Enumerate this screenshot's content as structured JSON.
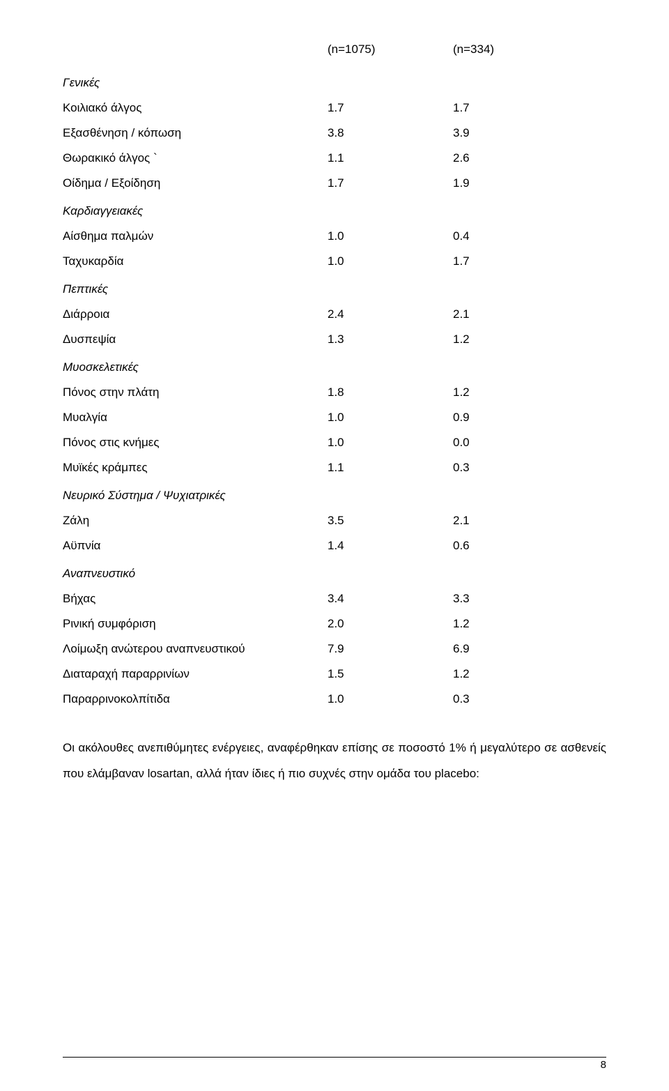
{
  "page": {
    "background_color": "#ffffff",
    "text_color": "#000000",
    "body_fontsize": 17,
    "line_height": 2.0,
    "font_family": "Arial",
    "page_number": "8"
  },
  "headers": {
    "col_a": "(n=1075)",
    "col_b": "(n=334)"
  },
  "sections": [
    {
      "title": "Γενικές",
      "rows": [
        {
          "label": "Κοιλιακό άλγος",
          "a": "1.7",
          "b": "1.7"
        },
        {
          "label": "Εξασθένηση / κόπωση",
          "a": "3.8",
          "b": "3.9"
        },
        {
          "label": "Θωρακικό άλγος   `",
          "a": "1.1",
          "b": "2.6"
        },
        {
          "label": "Οίδημα / Εξοίδηση",
          "a": "1.7",
          "b": "1.9"
        }
      ]
    },
    {
      "title": "Καρδιαγγειακές",
      "rows": [
        {
          "label": "Αίσθημα παλμών",
          "a": "1.0",
          "b": "0.4"
        },
        {
          "label": "Ταχυκαρδία",
          "a": "1.0",
          "b": "1.7"
        }
      ]
    },
    {
      "title": "Πεπτικές",
      "rows": [
        {
          "label": "Διάρροια",
          "a": "2.4",
          "b": "2.1"
        },
        {
          "label": "Δυσπεψία",
          "a": "1.3",
          "b": "1.2"
        }
      ]
    },
    {
      "title": "Μυοσκελετικές",
      "rows": [
        {
          "label": "Πόνος στην πλάτη",
          "a": "1.8",
          "b": "1.2"
        },
        {
          "label": "Μυαλγία",
          "a": "1.0",
          "b": "0.9"
        },
        {
          "label": "Πόνος στις κνήμες",
          "a": "1.0",
          "b": "0.0"
        },
        {
          "label": "Μυϊκές κράμπες",
          "a": "1.1",
          "b": "0.3"
        }
      ]
    },
    {
      "title": "Νευρικό Σύστημα / Ψυχιατρικές",
      "rows": [
        {
          "label": "Ζάλη",
          "a": "3.5",
          "b": "2.1"
        },
        {
          "label": "Αϋπνία",
          "a": "1.4",
          "b": "0.6"
        }
      ]
    },
    {
      "title": "Αναπνευστικό",
      "rows": [
        {
          "label": "Βήχας",
          "a": "3.4",
          "b": "3.3"
        },
        {
          "label": "Ρινική συμφόριση",
          "a": "2.0",
          "b": "1.2"
        },
        {
          "label": "Λοίμωξη ανώτερου αναπνευστικού",
          "a": "7.9",
          "b": "6.9"
        },
        {
          "label": "Διαταραχή παραρρινίων",
          "a": "1.5",
          "b": "1.2"
        },
        {
          "label": "Παραρρινοκολπίτιδα",
          "a": "1.0",
          "b": "0.3"
        }
      ]
    }
  ],
  "paragraph": "Οι ακόλουθες ανεπιθύμητες ενέργειες, αναφέρθηκαν επίσης σε ποσοστό 1% ή μεγαλύτερο σε ασθενείς που ελάμβαναν losartan, αλλά ήταν ίδιες ή πιο συχνές στην ομάδα του placebo:"
}
